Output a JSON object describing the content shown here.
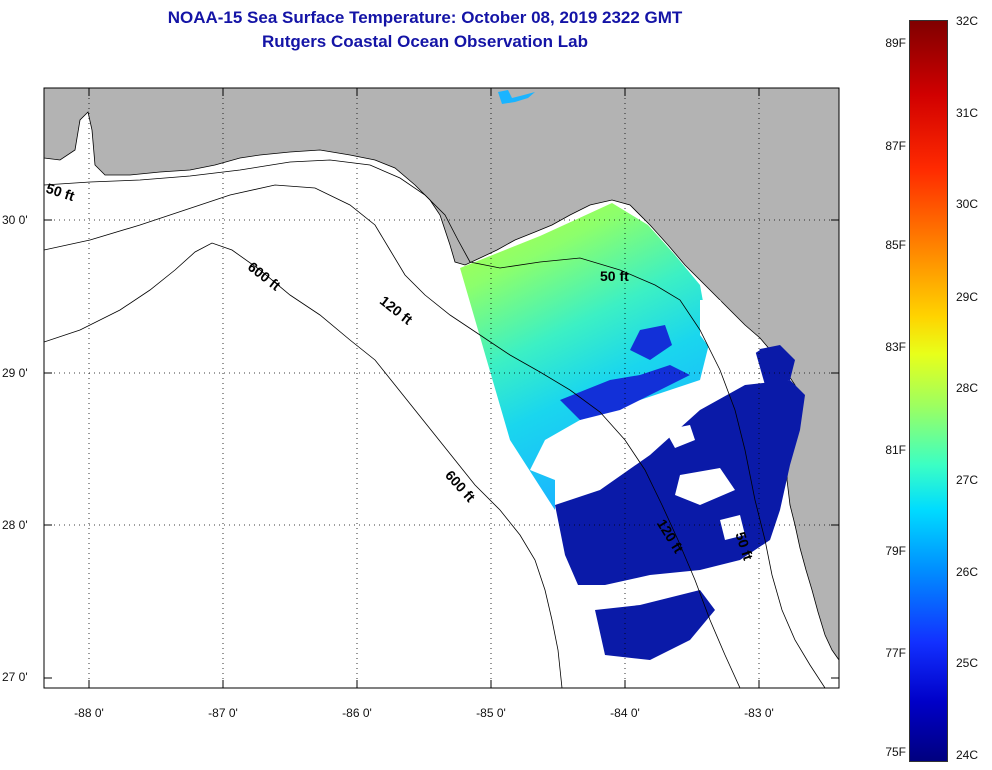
{
  "title_line1": "NOAA-15 Sea Surface Temperature:  October 08, 2019 2322 GMT",
  "title_line2": "Rutgers Coastal Ocean Observation Lab",
  "map": {
    "lat_ticks": [
      "30 0'",
      "29 0'",
      "28 0'",
      "27 0'"
    ],
    "lon_ticks": [
      "-88 0'",
      "-87 0'",
      "-86 0'",
      "-85 0'",
      "-84 0'",
      "-83 0'"
    ],
    "isobath_labels": [
      "50 ft",
      "600 ft",
      "120 ft",
      "50 ft",
      "600 ft",
      "120 ft",
      "50 ft"
    ],
    "colors": {
      "land": "#b3b3b3",
      "ocean": "#ffffff",
      "isobath": "#000000"
    }
  },
  "colorbar": {
    "fahrenheit_labels": [
      "89F",
      "87F",
      "85F",
      "83F",
      "81F",
      "79F",
      "77F",
      "75F"
    ],
    "celsius_labels": [
      "32C",
      "31C",
      "30C",
      "29C",
      "28C",
      "27C",
      "26C",
      "25C",
      "24C"
    ],
    "range_c": [
      24,
      32
    ],
    "range_f": [
      75,
      90
    ]
  }
}
